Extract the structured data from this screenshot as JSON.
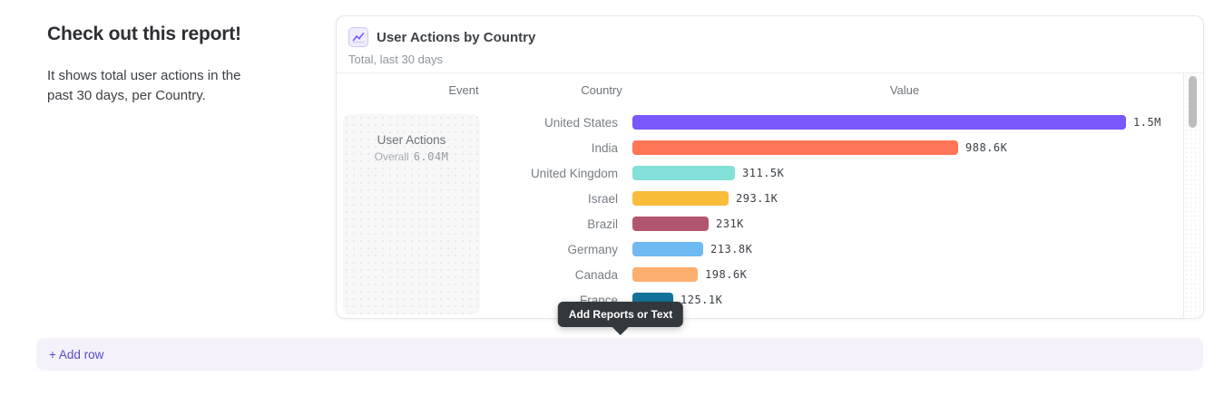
{
  "intro": {
    "title": "Check out this report!",
    "description": "It shows total user actions in the past 30 days, per Country."
  },
  "report_card": {
    "icon": "line-chart-icon",
    "title": "User Actions by Country",
    "subtitle": "Total, last 30 days",
    "columns": [
      "Event",
      "Country",
      "Value"
    ],
    "event": {
      "name": "User Actions",
      "overall_label": "Overall",
      "overall_value": "6.04M"
    }
  },
  "chart_data": {
    "type": "bar",
    "orientation": "horizontal",
    "title": "User Actions by Country",
    "subtitle": "Total, last 30 days",
    "series_name": "User Actions",
    "overall_total": "6.04M",
    "categories": [
      "United States",
      "India",
      "United Kingdom",
      "Israel",
      "Brazil",
      "Germany",
      "Canada",
      "France"
    ],
    "values": [
      1500000,
      988600,
      311500,
      293100,
      231000,
      213800,
      198600,
      125100
    ],
    "value_labels": [
      "1.5M",
      "988.6K",
      "311.5K",
      "293.1K",
      "231K",
      "213.8K",
      "198.6K",
      "125.1K"
    ],
    "bar_colors": [
      "#7a58fb",
      "#ff7556",
      "#83e0d9",
      "#f9bc3b",
      "#b25670",
      "#6fbaf2",
      "#fcae70",
      "#15739b"
    ],
    "xlim": [
      0,
      1500000
    ],
    "legend": "none",
    "grid": false
  },
  "tooltip": {
    "label": "Add Reports or Text"
  },
  "add_row": {
    "label": "+ Add row"
  },
  "colors": {
    "accent": "#564ec5",
    "card_border": "#e6e6e8",
    "tooltip_bg": "#33383d",
    "add_row_bg": "#f4f1fb"
  }
}
